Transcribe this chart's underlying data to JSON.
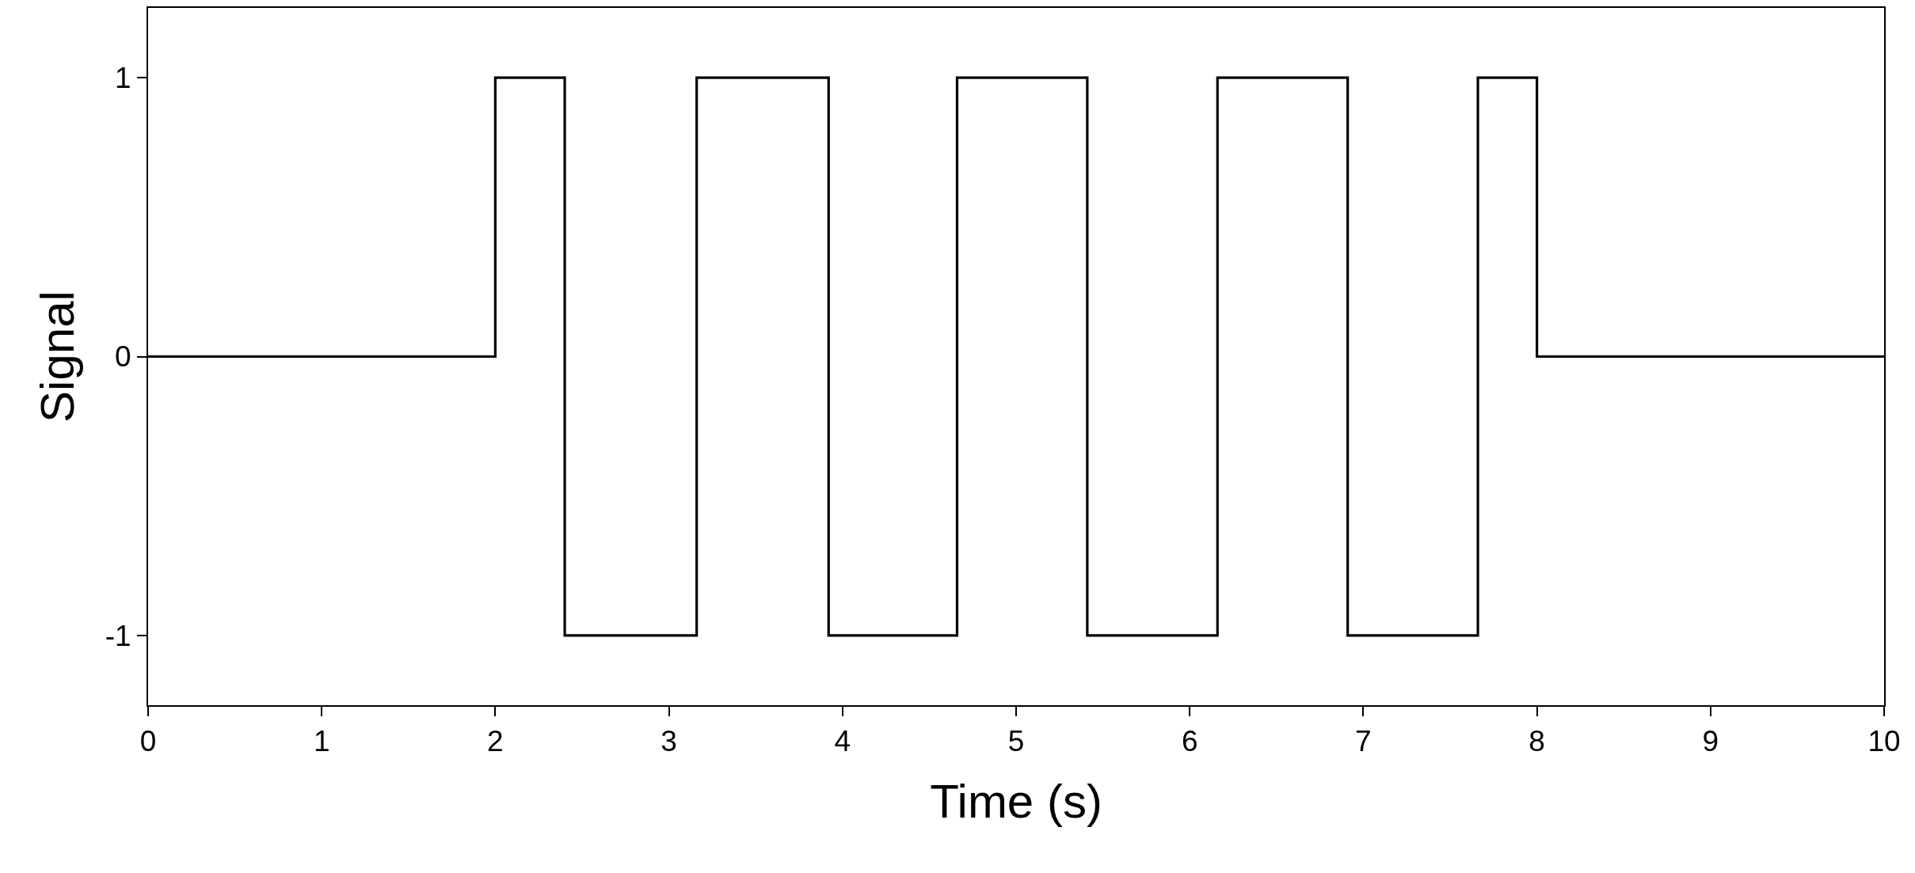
{
  "chart_data": {
    "type": "step",
    "xlabel": "Time (s)",
    "ylabel": "Signal",
    "x": [
      0,
      2,
      2.4,
      3.16,
      3.92,
      4.66,
      5.41,
      6.16,
      6.91,
      7.66,
      8,
      10
    ],
    "series": [
      {
        "color": "#000000",
        "values": [
          0,
          1,
          -1,
          1,
          -1,
          1,
          -1,
          1,
          -1,
          1,
          0,
          0
        ]
      }
    ],
    "xlim": [
      0,
      10
    ],
    "xticks": [
      0,
      1,
      2,
      3,
      4,
      5,
      6,
      7,
      8,
      9,
      10
    ],
    "ylim": [
      -1.25,
      1.25
    ],
    "yticks": [
      -1,
      0,
      1
    ],
    "legend": false,
    "marker": "none",
    "line_style": "solid"
  }
}
